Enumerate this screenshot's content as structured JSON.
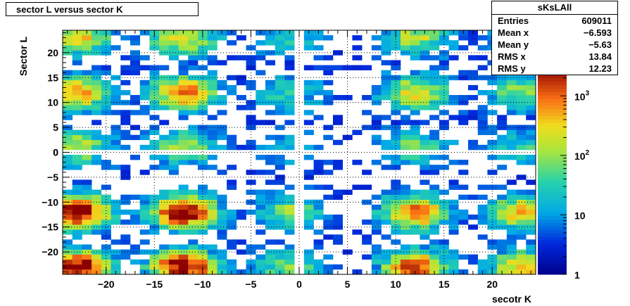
{
  "title": "sector L versus sector K",
  "stats": {
    "name": "sKsLAll",
    "rows": [
      {
        "label": "Entries",
        "value": "609011"
      },
      {
        "label": "Mean x",
        "value": "−6.593"
      },
      {
        "label": "Mean y",
        "value": "−5.63"
      },
      {
        "label": "RMS x",
        "value": "13.84"
      },
      {
        "label": "RMS y",
        "value": "12.23"
      }
    ]
  },
  "chart_data": {
    "type": "heatmap",
    "title": "sector L versus sector K",
    "xlabel": "secotr K",
    "ylabel": "Sector L",
    "xlim": [
      -24.5,
      24.5
    ],
    "ylim": [
      -24.5,
      24.5
    ],
    "x_ticks": [
      -20,
      -15,
      -10,
      -5,
      0,
      5,
      10,
      15,
      20
    ],
    "x_tick_labels": [
      "−20",
      "−15",
      "−10",
      "−5",
      "0",
      "5",
      "10",
      "15",
      "20"
    ],
    "y_ticks": [
      -20,
      -15,
      -10,
      -5,
      0,
      5,
      10,
      15,
      20
    ],
    "y_tick_labels": [
      "−20",
      "−15",
      "−10",
      "−5",
      "0",
      "5",
      "10",
      "15",
      "20"
    ],
    "grid": true,
    "z_scale": "log",
    "zlim": [
      1,
      3000
    ],
    "z_ticks": [
      1,
      10,
      100,
      1000
    ],
    "z_tick_labels": [
      "1",
      "10",
      "10^2",
      "10^3"
    ],
    "peaks_x": [
      -23,
      -12,
      -1,
      12,
      23
    ],
    "peaks_y": [
      -23,
      -12,
      1,
      12,
      23
    ],
    "peak_weight_x": [
      1.0,
      1.0,
      0.55,
      0.85,
      0.7
    ],
    "peak_weight_y": [
      1.0,
      1.0,
      0.6,
      0.8,
      0.7
    ],
    "note_palette": "rainbow"
  }
}
